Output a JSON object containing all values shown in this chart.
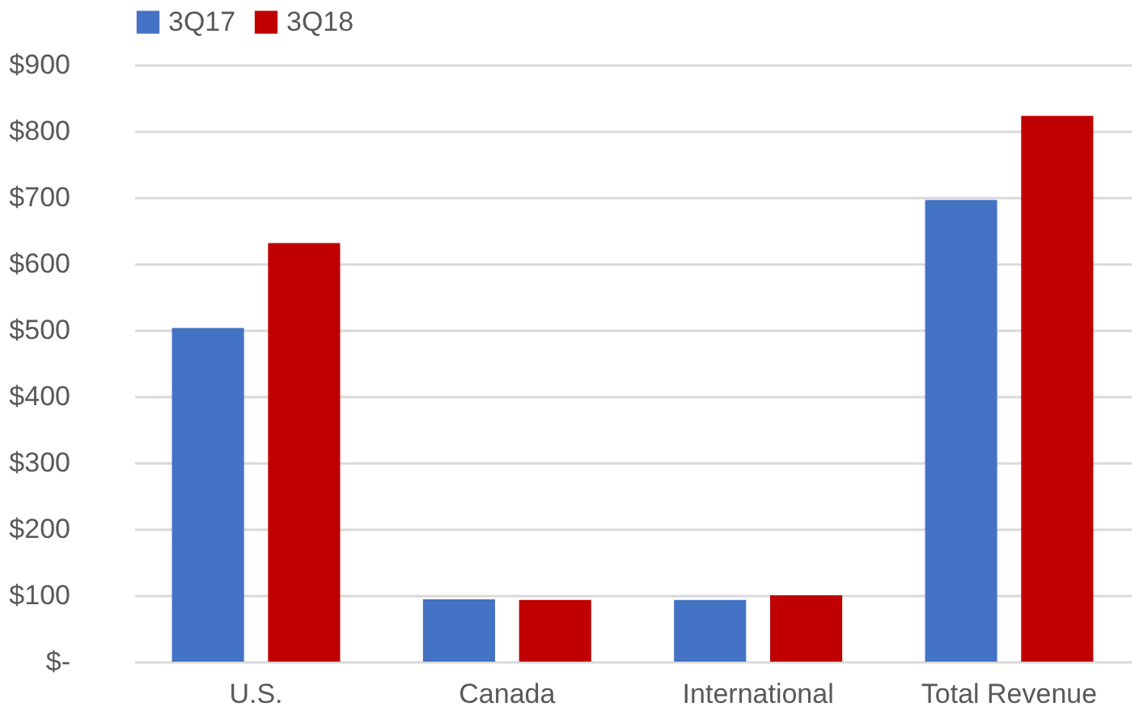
{
  "chart_data": {
    "type": "bar",
    "categories": [
      "U.S.",
      "Canada",
      "International",
      "Total Revenue"
    ],
    "series": [
      {
        "name": "3Q17",
        "color": "#4472c4",
        "values": [
          503,
          94,
          93,
          696
        ]
      },
      {
        "name": "3Q18",
        "color": "#c00000",
        "values": [
          631,
          93,
          100,
          823
        ]
      }
    ],
    "ylim": [
      0,
      900
    ],
    "yticks": [
      {
        "value": 0,
        "label": "$-"
      },
      {
        "value": 100,
        "label": "$100"
      },
      {
        "value": 200,
        "label": "$200"
      },
      {
        "value": 300,
        "label": "$300"
      },
      {
        "value": 400,
        "label": "$400"
      },
      {
        "value": 500,
        "label": "$500"
      },
      {
        "value": 600,
        "label": "$600"
      },
      {
        "value": 700,
        "label": "$700"
      },
      {
        "value": 800,
        "label": "$800"
      },
      {
        "value": 900,
        "label": "$900"
      }
    ],
    "grid": "y",
    "legend": "top"
  }
}
